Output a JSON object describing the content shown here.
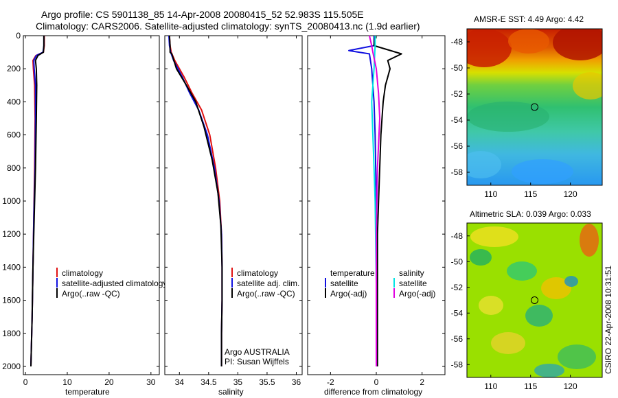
{
  "header": {
    "line1": "Argo profile: CS 5901138_85 14-Apr-2008 20080415_52 52.983S 115.505E",
    "line2": "Climatology: CARS2006. Satellite-adjusted climatology: synTS_20080413.nc (1.9d earlier)"
  },
  "colors": {
    "climatology": "#e01010",
    "satellite": "#1010e0",
    "argo": "#000000",
    "sat_salinity": "#00e5e5",
    "argo_salinity_adj": "#e000e0"
  },
  "side_text": "CSIRO 22-Apr-2008 10:31:51",
  "chart_data": [
    {
      "id": "temperature",
      "type": "line",
      "xlabel": "temperature",
      "ylabel": "",
      "xlim": [
        -0.5,
        32
      ],
      "ylim": [
        2050,
        0
      ],
      "xticks": [
        0,
        10,
        20,
        30
      ],
      "xticklabels": [
        "0",
        "10",
        "20",
        "30"
      ],
      "yticks": [
        0,
        200,
        400,
        600,
        800,
        1000,
        1200,
        1400,
        1600,
        1800,
        2000
      ],
      "yticklabels": [
        "0",
        "200",
        "400",
        "600",
        "800",
        "1000",
        "1200",
        "1400",
        "1600",
        "1800",
        "2000"
      ],
      "legend": [
        "climatology",
        "satellite-adjusted climatology",
        "Argo(..raw -QC)"
      ],
      "series": [
        {
          "name": "climatology",
          "color_key": "climatology",
          "x": [
            4.5,
            4.5,
            4.3,
            2.5,
            1.8,
            1.9,
            2.2,
            2.3,
            2.2,
            2.0,
            1.8,
            1.6,
            1.4,
            1.3
          ],
          "y": [
            0,
            60,
            100,
            120,
            150,
            200,
            300,
            500,
            800,
            1100,
            1400,
            1700,
            1900,
            2000
          ]
        },
        {
          "name": "satellite-adjusted climatology",
          "color_key": "satellite",
          "x": [
            4.4,
            4.4,
            4.2,
            2.6,
            2.0,
            2.1,
            2.4,
            2.4,
            2.3,
            2.0,
            1.8,
            1.6,
            1.4,
            1.3
          ],
          "y": [
            0,
            60,
            100,
            120,
            150,
            200,
            300,
            500,
            800,
            1100,
            1400,
            1700,
            1900,
            2000
          ]
        },
        {
          "name": "Argo(..raw -QC)",
          "color_key": "argo",
          "x": [
            4.4,
            4.4,
            4.3,
            3.0,
            2.4,
            2.6,
            2.7,
            2.6,
            2.4,
            2.1,
            1.8,
            1.6,
            1.4,
            1.3
          ],
          "y": [
            0,
            60,
            100,
            120,
            150,
            200,
            300,
            500,
            800,
            1100,
            1400,
            1700,
            1900,
            2000
          ]
        }
      ]
    },
    {
      "id": "salinity",
      "type": "line",
      "xlabel": "salinity",
      "xlim": [
        33.75,
        36.1
      ],
      "ylim": [
        2050,
        0
      ],
      "xticks": [
        34,
        34.5,
        35,
        35.5,
        36
      ],
      "xticklabels": [
        "34",
        "34.5",
        "35",
        "35.5",
        "36"
      ],
      "legend": [
        "climatology",
        "satellite adj. clim.",
        "Argo(..raw -QC)"
      ],
      "annotation": [
        "Argo AUSTRALIA",
        "PI: Susan Wijffels"
      ],
      "series": [
        {
          "name": "climatology",
          "color_key": "climatology",
          "x": [
            33.83,
            33.84,
            33.86,
            33.92,
            34.08,
            34.22,
            34.38,
            34.52,
            34.62,
            34.69,
            34.72,
            34.73,
            34.73,
            34.72,
            34.72
          ],
          "y": [
            0,
            60,
            100,
            150,
            250,
            350,
            450,
            600,
            800,
            1000,
            1200,
            1400,
            1600,
            1800,
            2000
          ]
        },
        {
          "name": "satellite adj. clim.",
          "color_key": "satellite",
          "x": [
            33.82,
            33.83,
            33.85,
            33.9,
            34.05,
            34.18,
            34.33,
            34.48,
            34.6,
            34.68,
            34.72,
            34.73,
            34.73,
            34.72,
            34.72
          ],
          "y": [
            0,
            60,
            100,
            150,
            250,
            350,
            450,
            600,
            800,
            1000,
            1200,
            1400,
            1600,
            1800,
            2000
          ]
        },
        {
          "name": "Argo(..raw -QC)",
          "color_key": "argo",
          "x": [
            33.83,
            33.84,
            33.84,
            33.87,
            33.95,
            34.12,
            34.28,
            34.42,
            34.56,
            34.66,
            34.71,
            34.73,
            34.73,
            34.72,
            34.72
          ],
          "y": [
            0,
            60,
            100,
            110,
            200,
            300,
            400,
            550,
            750,
            950,
            1150,
            1400,
            1600,
            1800,
            2000
          ]
        }
      ]
    },
    {
      "id": "difference",
      "type": "line",
      "xlabel": "difference from climatology",
      "xlim": [
        -3,
        3
      ],
      "ylim": [
        2050,
        0
      ],
      "xticks": [
        -2,
        0,
        2
      ],
      "xticklabels": [
        "-2",
        "0",
        "2"
      ],
      "legend_temperature_heading": "temperature",
      "legend_salinity_heading": "salinity",
      "legend": [
        "satellite",
        "Argo(-adj)",
        "satellite",
        "Argo(-adj)"
      ],
      "series": [
        {
          "name": "temperature satellite",
          "color_key": "satellite",
          "x": [
            -0.1,
            -0.1,
            -1.2,
            -0.3,
            -0.2,
            -0.1,
            -0.05,
            0.0,
            0.0,
            0.0
          ],
          "y": [
            0,
            60,
            90,
            110,
            200,
            400,
            600,
            1000,
            1500,
            2000
          ]
        },
        {
          "name": "temperature Argo(-adj)",
          "color_key": "argo",
          "x": [
            -0.05,
            -0.1,
            1.1,
            0.5,
            0.6,
            0.5,
            0.4,
            0.3,
            0.2,
            0.15,
            0.1,
            0.05,
            0.05,
            0.05
          ],
          "y": [
            0,
            60,
            110,
            150,
            200,
            250,
            300,
            400,
            600,
            800,
            1000,
            1200,
            1600,
            2000
          ]
        },
        {
          "name": "salinity satellite",
          "color_key": "sat_salinity",
          "x": [
            -0.05,
            -0.05,
            -0.1,
            -0.15,
            -0.2,
            -0.15,
            -0.1,
            -0.05,
            0.0,
            0.0
          ],
          "y": [
            0,
            60,
            200,
            300,
            400,
            600,
            800,
            1000,
            1500,
            2000
          ]
        },
        {
          "name": "salinity Argo(-adj)",
          "color_key": "argo_salinity_adj",
          "x": [
            -0.3,
            -0.2,
            -0.15,
            0.0,
            0.1,
            0.15,
            0.05,
            0.0,
            0.0
          ],
          "y": [
            0,
            60,
            100,
            200,
            350,
            500,
            800,
            1200,
            2000
          ]
        }
      ]
    },
    {
      "id": "sst_map",
      "type": "heatmap",
      "title": "AMSR-E SST: 4.49 Argo: 4.42",
      "xlim": [
        107,
        124
      ],
      "ylim": [
        -59,
        -47
      ],
      "xticks": [
        110,
        115,
        120
      ],
      "xticklabels": [
        "110",
        "115",
        "120"
      ],
      "yticks": [
        -48,
        -50,
        -52,
        -54,
        -56,
        -58
      ],
      "yticklabels": [
        "-48",
        "-50",
        "-52",
        "-54",
        "-56",
        "-58"
      ],
      "marker": {
        "lon": 115.5,
        "lat": -53.0
      }
    },
    {
      "id": "sla_map",
      "type": "heatmap",
      "title": "Altimetric SLA: 0.039 Argo: 0.033",
      "xlim": [
        107,
        124
      ],
      "ylim": [
        -59,
        -47
      ],
      "xticks": [
        110,
        115,
        120
      ],
      "xticklabels": [
        "110",
        "115",
        "120"
      ],
      "yticks": [
        -48,
        -50,
        -52,
        -54,
        -56,
        -58
      ],
      "yticklabels": [
        "-48",
        "-50",
        "-52",
        "-54",
        "-56",
        "-58"
      ],
      "marker": {
        "lon": 115.5,
        "lat": -53.0
      }
    }
  ]
}
